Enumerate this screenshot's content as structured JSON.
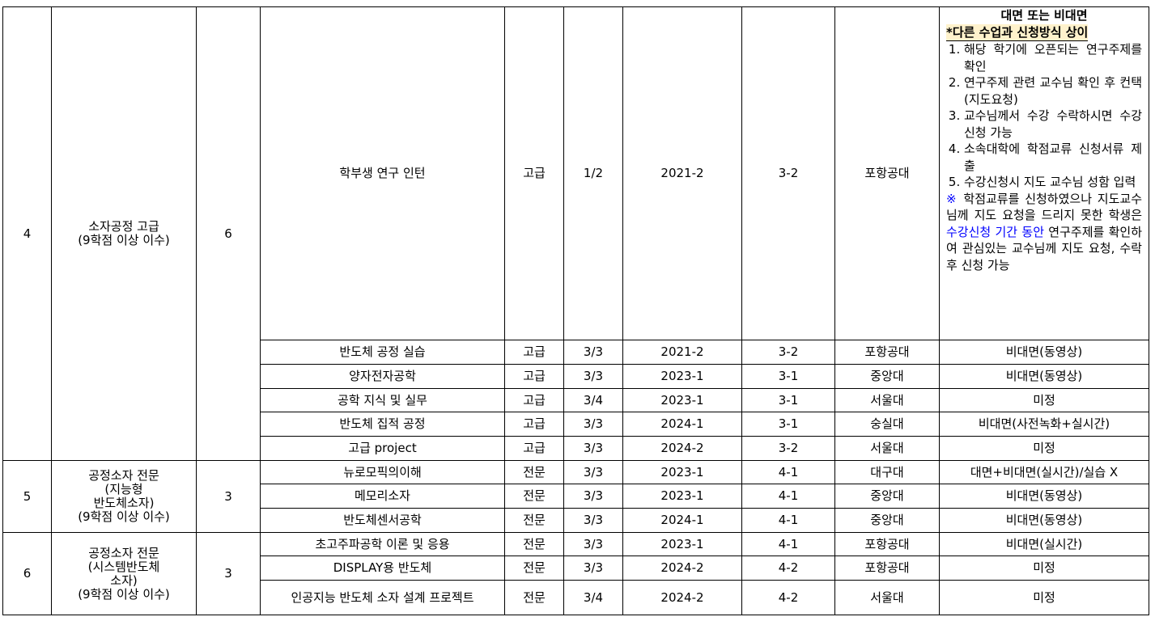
{
  "groups": [
    {
      "no": "4",
      "area_lines": [
        "소자공정 고급",
        "(9학점 이상 이수)"
      ],
      "required": "6",
      "courses": [
        {
          "name": "학부생 연구 인턴",
          "level": "고급",
          "grade_sem": "1/2",
          "opened": "2021-2",
          "recommended": "3-2",
          "university": "포항공대",
          "method": null
        },
        {
          "name": "반도체 공정 실습",
          "level": "고급",
          "grade_sem": "3/3",
          "opened": "2021-2",
          "recommended": "3-2",
          "university": "포항공대",
          "method": "비대면(동영상)"
        },
        {
          "name": "양자전자공학",
          "level": "고급",
          "grade_sem": "3/3",
          "opened": "2023-1",
          "recommended": "3-1",
          "university": "중앙대",
          "method": "비대면(동영상)"
        },
        {
          "name": "공학 지식 및 실무",
          "level": "고급",
          "grade_sem": "3/4",
          "opened": "2023-1",
          "recommended": "3-1",
          "university": "서울대",
          "method": "미정"
        },
        {
          "name": "반도체 집적 공정",
          "level": "고급",
          "grade_sem": "3/3",
          "opened": "2024-1",
          "recommended": "3-1",
          "university": "숭실대",
          "method": "비대면(사전녹화+실시간)"
        },
        {
          "name": "고급 project",
          "level": "고급",
          "grade_sem": "3/3",
          "opened": "2024-2",
          "recommended": "3-2",
          "university": "서울대",
          "method": "미정"
        }
      ]
    },
    {
      "no": "5",
      "area_lines": [
        "공정소자 전문",
        "(지능형",
        "반도체소자)",
        "(9학점 이상 이수)"
      ],
      "required": "3",
      "courses": [
        {
          "name": "뉴로모픽의이해",
          "level": "전문",
          "grade_sem": "3/3",
          "opened": "2023-1",
          "recommended": "4-1",
          "university": "대구대",
          "method": "대면+비대면(실시간)/실습 X"
        },
        {
          "name": "메모리소자",
          "level": "전문",
          "grade_sem": "3/3",
          "opened": "2023-1",
          "recommended": "4-1",
          "university": "중앙대",
          "method": "비대면(동영상)"
        },
        {
          "name": "반도체센서공학",
          "level": "전문",
          "grade_sem": "3/3",
          "opened": "2024-1",
          "recommended": "4-1",
          "university": "중앙대",
          "method": "비대면(동영상)"
        }
      ]
    },
    {
      "no": "6",
      "area_lines": [
        "공정소자 전문",
        "(시스템반도체",
        "소자)",
        "(9학점 이상 이수)"
      ],
      "required": "3",
      "courses": [
        {
          "name": "초고주파공학 이론 및 응용",
          "level": "전문",
          "grade_sem": "3/3",
          "opened": "2023-1",
          "recommended": "4-1",
          "university": "포항공대",
          "method": "비대면(실시간)"
        },
        {
          "name": "DISPLAY용 반도체",
          "level": "전문",
          "grade_sem": "3/3",
          "opened": "2024-2",
          "recommended": "4-2",
          "university": "포항공대",
          "method": "미정"
        },
        {
          "name": "인공지능 반도체 소자 설계 프로젝트",
          "level": "전문",
          "grade_sem": "3/4",
          "opened": "2024-2",
          "recommended": "4-2",
          "university": "서울대",
          "method": "미정"
        }
      ]
    }
  ],
  "intern_note": {
    "heading": "대면 또는 비대면",
    "highlight": "*다른 수업과 신청방식 상이",
    "steps": [
      "해당 학기에 오픈되는 연구주제를 확인",
      "연구주제 관련 교수님 확인 후 컨택(지도요청)",
      "교수님께서 수강 수락하시면 수강신청 가능",
      "소속대학에 학점교류 신청서류 제출",
      "수강신청시 지도 교수님 성함 입력"
    ],
    "remark_symbol": "※",
    "remark_part1": " 학점교류를 신청하였으나 지도교수님께 지도 요청을 드리지 못한 학생은 ",
    "remark_blue": "수강신청 기간 동안",
    "remark_part2": " 연구주제를 확인하여 관심있는 교수님께 지도 요청, 수락 후 신청 가능"
  },
  "colors": {
    "text": "#000000",
    "highlight_bg": "#fff2cc",
    "link_blue": "#0000ff"
  }
}
